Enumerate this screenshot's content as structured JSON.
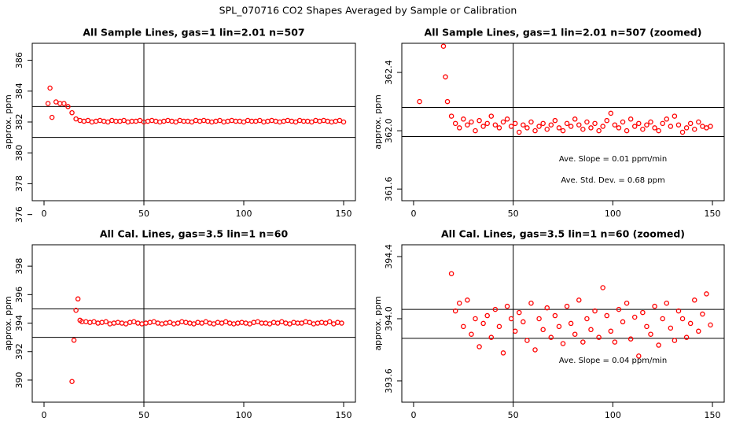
{
  "title": "SPL_070716  CO2 Shapes Averaged by Sample or Calibration",
  "chart_data": [
    {
      "type": "scatter",
      "title": "All Sample Lines, gas=1 lin=2.01 n=507",
      "y_label": "approx. ppm",
      "color": "#ff0000",
      "x": [
        2,
        3,
        4,
        6,
        8,
        10,
        12,
        14,
        16,
        18,
        20,
        22,
        24,
        26,
        28,
        30,
        32,
        34,
        36,
        38,
        40,
        42,
        44,
        46,
        48,
        50,
        52,
        54,
        56,
        58,
        60,
        62,
        64,
        66,
        68,
        70,
        72,
        74,
        76,
        78,
        80,
        82,
        84,
        86,
        88,
        90,
        92,
        94,
        96,
        98,
        100,
        102,
        104,
        106,
        108,
        110,
        112,
        114,
        116,
        118,
        120,
        122,
        124,
        126,
        128,
        130,
        132,
        134,
        136,
        138,
        140,
        142,
        144,
        146,
        148,
        150
      ],
      "values": [
        383.2,
        384.2,
        382.3,
        383.3,
        383.2,
        383.2,
        383.0,
        382.6,
        382.2,
        382.1,
        382.05,
        382.1,
        382.0,
        382.05,
        382.1,
        382.05,
        382.0,
        382.1,
        382.05,
        382.05,
        382.1,
        382.0,
        382.05,
        382.05,
        382.1,
        382.0,
        382.05,
        382.1,
        382.05,
        382.0,
        382.05,
        382.1,
        382.05,
        382.0,
        382.1,
        382.05,
        382.05,
        382.0,
        382.1,
        382.05,
        382.1,
        382.05,
        382.0,
        382.05,
        382.1,
        382.0,
        382.05,
        382.1,
        382.05,
        382.05,
        382.0,
        382.1,
        382.05,
        382.05,
        382.1,
        382.0,
        382.05,
        382.1,
        382.05,
        382.0,
        382.05,
        382.1,
        382.05,
        382.0,
        382.1,
        382.05,
        382.05,
        382.0,
        382.1,
        382.05,
        382.1,
        382.05,
        382.0,
        382.05,
        382.1,
        382.0
      ],
      "xlim": [
        -5.9,
        155.9
      ],
      "xticks": [
        0,
        50,
        100,
        150
      ],
      "ylim": [
        376.9,
        387.1
      ],
      "yticks": [
        376,
        378,
        380,
        382,
        384,
        386
      ],
      "hlines": [
        381,
        383
      ],
      "vline": 50,
      "annotations": []
    },
    {
      "type": "scatter",
      "title": "All Sample Lines, gas=1 lin=2.01 n=507 (zoomed)",
      "y_label": "approx. ppm",
      "color": "#ff0000",
      "x": [
        3,
        15,
        16,
        17,
        19,
        21,
        23,
        25,
        27,
        29,
        31,
        33,
        35,
        37,
        39,
        41,
        43,
        45,
        47,
        49,
        51,
        53,
        55,
        57,
        59,
        61,
        63,
        65,
        67,
        69,
        71,
        73,
        75,
        77,
        79,
        81,
        83,
        85,
        87,
        89,
        91,
        93,
        95,
        97,
        99,
        101,
        103,
        105,
        107,
        109,
        111,
        113,
        115,
        117,
        119,
        121,
        123,
        125,
        127,
        129,
        131,
        133,
        135,
        137,
        139,
        141,
        143,
        145,
        147,
        149
      ],
      "values": [
        362.2,
        362.58,
        362.37,
        362.2,
        362.1,
        362.05,
        362.02,
        362.08,
        362.04,
        362.06,
        362.0,
        362.07,
        362.03,
        362.05,
        362.1,
        362.04,
        362.02,
        362.06,
        362.08,
        362.03,
        362.05,
        361.99,
        362.04,
        362.02,
        362.06,
        362.0,
        362.03,
        362.05,
        362.01,
        362.04,
        362.07,
        362.02,
        362.0,
        362.05,
        362.03,
        362.08,
        362.04,
        362.01,
        362.06,
        362.02,
        362.05,
        362.0,
        362.03,
        362.07,
        362.12,
        362.04,
        362.02,
        362.06,
        362.0,
        362.08,
        362.03,
        362.05,
        362.01,
        362.04,
        362.06,
        362.02,
        362.0,
        362.05,
        362.08,
        362.03,
        362.1,
        362.04,
        361.99,
        362.02,
        362.05,
        362.01,
        362.06,
        362.03,
        362.02,
        362.03
      ],
      "xlim": [
        -5.9,
        155.9
      ],
      "xticks": [
        0,
        50,
        100,
        150
      ],
      "ylim": [
        361.52,
        362.6
      ],
      "yticks": [
        361.6,
        {
          "value": 362,
          "label": "362.0"
        },
        362.4
      ],
      "hlines": [
        361.96,
        362.16
      ],
      "vline": 50,
      "annotations": [
        "Ave. Slope =  0.01  ppm/min",
        "Ave. Std. Dev. =  0.68  ppm"
      ]
    },
    {
      "type": "scatter",
      "title": "All Cal. Lines, gas=3.5 lin=1 n=60",
      "y_label": "approx. ppm",
      "color": "#ff0000",
      "x": [
        14,
        15,
        16,
        17,
        18,
        19,
        21,
        23,
        25,
        27,
        29,
        31,
        33,
        35,
        37,
        39,
        41,
        43,
        45,
        47,
        49,
        51,
        53,
        55,
        57,
        59,
        61,
        63,
        65,
        67,
        69,
        71,
        73,
        75,
        77,
        79,
        81,
        83,
        85,
        87,
        89,
        91,
        93,
        95,
        97,
        99,
        101,
        103,
        105,
        107,
        109,
        111,
        113,
        115,
        117,
        119,
        121,
        123,
        125,
        127,
        129,
        131,
        133,
        135,
        137,
        139,
        141,
        143,
        145,
        147,
        149
      ],
      "values": [
        389.9,
        392.8,
        394.9,
        395.7,
        394.2,
        394.1,
        394.1,
        394.05,
        394.1,
        394.0,
        394.05,
        394.1,
        393.95,
        394.0,
        394.05,
        394.0,
        393.95,
        394.05,
        394.1,
        394.0,
        393.95,
        394.0,
        394.05,
        394.1,
        394.0,
        393.95,
        394.0,
        394.05,
        393.95,
        394.0,
        394.1,
        394.05,
        394.0,
        393.95,
        394.05,
        394.0,
        394.1,
        394.0,
        393.95,
        394.05,
        394.0,
        394.1,
        394.0,
        393.95,
        394.0,
        394.05,
        394.0,
        393.95,
        394.05,
        394.1,
        394.0,
        394.0,
        393.95,
        394.05,
        394.0,
        394.1,
        394.0,
        393.95,
        394.05,
        394.0,
        394.0,
        394.1,
        394.05,
        393.95,
        394.0,
        394.05,
        394.0,
        394.1,
        393.95,
        394.05,
        394.0
      ],
      "xlim": [
        -5.9,
        155.9
      ],
      "xticks": [
        0,
        50,
        100,
        150
      ],
      "ylim": [
        388.45,
        399.5
      ],
      "yticks": [
        390,
        392,
        394,
        396,
        398
      ],
      "hlines": [
        393,
        395
      ],
      "vline": 50,
      "annotations": []
    },
    {
      "type": "scatter",
      "title": "All Cal. Lines, gas=3.5 lin=1 n=60 (zoomed)",
      "y_label": "approx. ppm",
      "color": "#ff0000",
      "x": [
        19,
        21,
        23,
        25,
        27,
        29,
        31,
        33,
        35,
        37,
        39,
        41,
        43,
        45,
        47,
        49,
        51,
        53,
        55,
        57,
        59,
        61,
        63,
        65,
        67,
        69,
        71,
        73,
        75,
        77,
        79,
        81,
        83,
        85,
        87,
        89,
        91,
        93,
        95,
        97,
        99,
        101,
        103,
        105,
        107,
        109,
        111,
        113,
        115,
        117,
        119,
        121,
        123,
        125,
        127,
        129,
        131,
        133,
        135,
        137,
        139,
        141,
        143,
        145,
        147,
        149
      ],
      "values": [
        394.29,
        394.05,
        394.1,
        393.95,
        394.12,
        393.9,
        394.0,
        393.82,
        393.97,
        394.02,
        393.88,
        394.06,
        393.95,
        393.78,
        394.08,
        394.0,
        393.92,
        394.04,
        393.98,
        393.86,
        394.1,
        393.8,
        394.0,
        393.93,
        394.07,
        393.88,
        394.02,
        393.95,
        393.84,
        394.08,
        393.97,
        393.9,
        394.12,
        393.85,
        394.0,
        393.93,
        394.05,
        393.88,
        394.2,
        394.02,
        393.92,
        393.85,
        394.06,
        393.98,
        394.1,
        393.87,
        394.01,
        393.76,
        394.04,
        393.95,
        393.9,
        394.08,
        393.83,
        394.0,
        394.1,
        393.94,
        393.86,
        394.05,
        394.0,
        393.88,
        393.97,
        394.12,
        393.92,
        394.03,
        394.16,
        393.96
      ],
      "xlim": [
        -5.9,
        155.9
      ],
      "xticks": [
        0,
        50,
        100,
        150
      ],
      "ylim": [
        393.463,
        394.476
      ],
      "yticks": [
        393.6,
        {
          "value": 394,
          "label": "394.0"
        },
        394.4
      ],
      "hlines": [
        393.874,
        394.06
      ],
      "vline": 50,
      "annotations": [
        "Ave. Slope =  0.04  ppm/min"
      ]
    }
  ]
}
